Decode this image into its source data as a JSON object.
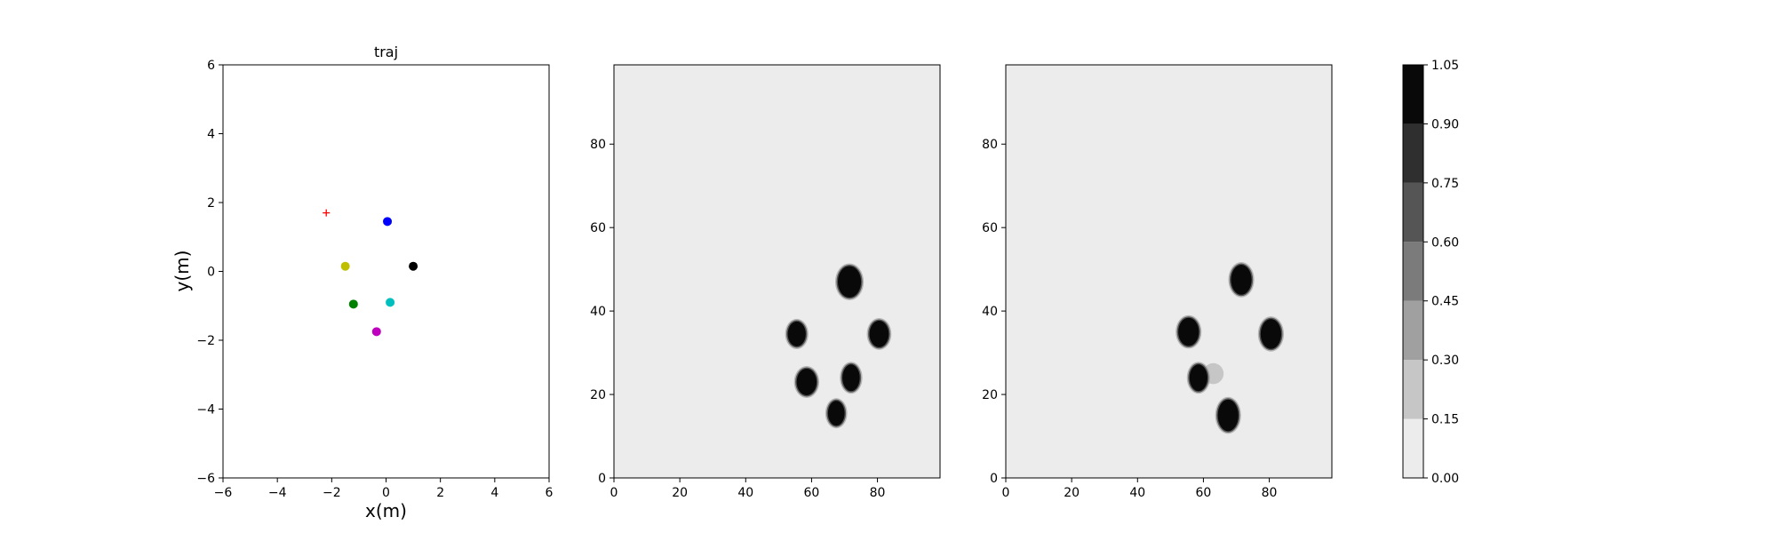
{
  "chart_data": [
    {
      "type": "scatter",
      "title": "traj",
      "xlabel": "x(m)",
      "ylabel": "y(m)",
      "xlim": [
        -6,
        6
      ],
      "ylim": [
        -6,
        6
      ],
      "xticks": [
        "−6",
        "−4",
        "−2",
        "0",
        "2",
        "4",
        "6"
      ],
      "yticks": [
        "−6",
        "−4",
        "−2",
        "0",
        "2",
        "4",
        "6"
      ],
      "grid": false,
      "points": [
        {
          "x": 0.05,
          "y": 1.45,
          "color": "#0000ff",
          "marker": "circle"
        },
        {
          "x": 1.0,
          "y": 0.15,
          "color": "#000000",
          "marker": "circle"
        },
        {
          "x": -1.5,
          "y": 0.15,
          "color": "#bfbf00",
          "marker": "circle"
        },
        {
          "x": 0.15,
          "y": -0.9,
          "color": "#00bfbf",
          "marker": "circle"
        },
        {
          "x": -1.2,
          "y": -0.95,
          "color": "#008000",
          "marker": "circle"
        },
        {
          "x": -0.35,
          "y": -1.75,
          "color": "#bf00bf",
          "marker": "circle"
        },
        {
          "x": -2.2,
          "y": 1.7,
          "color": "#ff0000",
          "marker": "plus"
        }
      ]
    },
    {
      "type": "heatmap",
      "title": "",
      "xlim": [
        0,
        99
      ],
      "ylim": [
        0,
        99
      ],
      "xticks": [
        "0",
        "20",
        "40",
        "60",
        "80"
      ],
      "yticks": [
        "0",
        "20",
        "40",
        "60",
        "80"
      ],
      "background_value": 0.05,
      "blobs": [
        {
          "x": 71.5,
          "y": 47,
          "rx": 3.8,
          "ry": 4.0,
          "value": 1.0
        },
        {
          "x": 55.5,
          "y": 34.5,
          "rx": 3.0,
          "ry": 3.2,
          "value": 1.0
        },
        {
          "x": 80.5,
          "y": 34.5,
          "rx": 3.2,
          "ry": 3.4,
          "value": 1.0
        },
        {
          "x": 58.5,
          "y": 23,
          "rx": 3.3,
          "ry": 3.4,
          "value": 1.0
        },
        {
          "x": 72,
          "y": 24,
          "rx": 2.9,
          "ry": 3.4,
          "value": 1.0
        },
        {
          "x": 67.5,
          "y": 15.5,
          "rx": 2.8,
          "ry": 3.2,
          "value": 1.0
        }
      ]
    },
    {
      "type": "heatmap",
      "title": "",
      "xlim": [
        0,
        99
      ],
      "ylim": [
        0,
        99
      ],
      "xticks": [
        "0",
        "20",
        "40",
        "60",
        "80"
      ],
      "yticks": [
        "0",
        "20",
        "40",
        "60",
        "80"
      ],
      "background_value": 0.05,
      "blobs": [
        {
          "x": 71.5,
          "y": 47.5,
          "rx": 3.4,
          "ry": 3.8,
          "value": 1.0
        },
        {
          "x": 55.5,
          "y": 35,
          "rx": 3.4,
          "ry": 3.6,
          "value": 1.0
        },
        {
          "x": 80.5,
          "y": 34.5,
          "rx": 3.4,
          "ry": 3.8,
          "value": 1.0
        },
        {
          "x": 63,
          "y": 25,
          "rx": 3.0,
          "ry": 2.4,
          "value": 0.25
        },
        {
          "x": 58.5,
          "y": 24,
          "rx": 3.0,
          "ry": 3.4,
          "value": 1.0
        },
        {
          "x": 67.5,
          "y": 15,
          "rx": 3.4,
          "ry": 4.0,
          "value": 1.0
        }
      ]
    },
    {
      "type": "colorbar",
      "levels": [
        0.0,
        0.15,
        0.3,
        0.45,
        0.6,
        0.75,
        0.9,
        1.05
      ],
      "tick_labels": [
        "0.00",
        "0.15",
        "0.30",
        "0.45",
        "0.60",
        "0.75",
        "0.90",
        "1.05"
      ],
      "colors": [
        "#ececec",
        "#c6c6c6",
        "#a0a0a0",
        "#7b7b7b",
        "#555555",
        "#2f2f2f",
        "#090909"
      ]
    }
  ]
}
